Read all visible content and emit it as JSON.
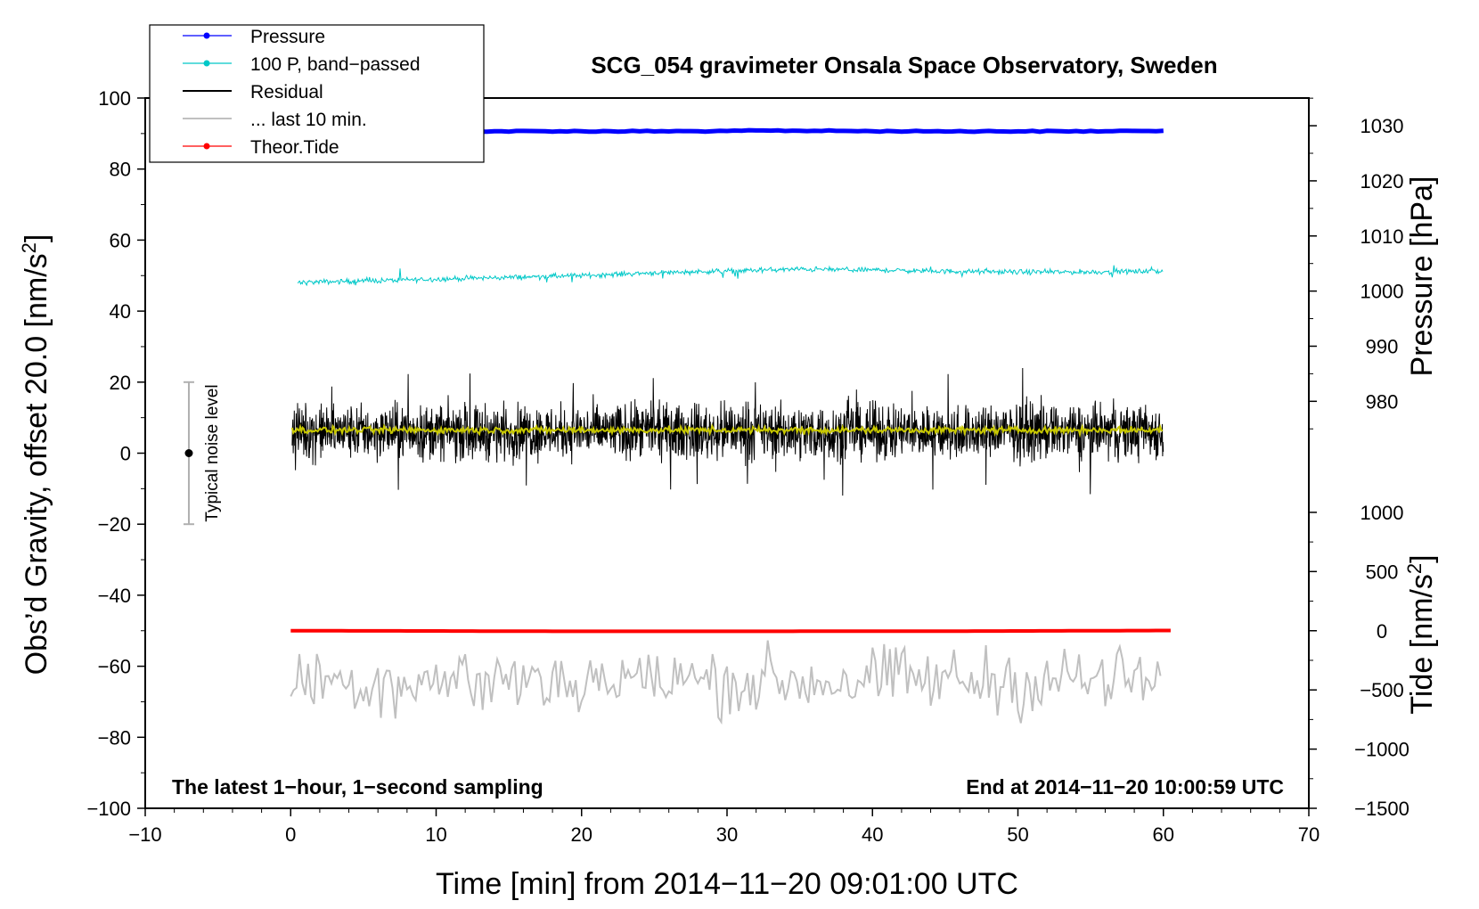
{
  "chart_data": {
    "type": "line",
    "title": "SCG_054 gravimeter Onsala Space Observatory, Sweden",
    "xlabel": "Time [min] from 2014−11−20 09:01:00 UTC",
    "ylabel_left": "Obs’d Gravity, offset 20.0 [nm/s",
    "ylabel_left_sup": "2",
    "ylabel_left_end": "]",
    "ylabel_right_pressure": "Pressure [hPa]",
    "ylabel_right_tide": "Tide [nm/s",
    "ylabel_right_tide_sup": "2",
    "ylabel_right_tide_end": "]",
    "xlim": [
      -10,
      70
    ],
    "ylim": [
      -100,
      100
    ],
    "x_ticks": [
      -10,
      0,
      10,
      20,
      30,
      40,
      50,
      60,
      70
    ],
    "x_tick_labels": [
      "−10",
      "0",
      "10",
      "20",
      "30",
      "40",
      "50",
      "60",
      "70"
    ],
    "y_ticks": [
      -100,
      -80,
      -60,
      -40,
      -20,
      0,
      20,
      40,
      60,
      80,
      100
    ],
    "y_tick_labels": [
      "−100",
      "−80",
      "−60",
      "−40",
      "−20",
      "0",
      "20",
      "40",
      "60",
      "80",
      "100"
    ],
    "pressure_axis": {
      "ticks": [
        980,
        990,
        1000,
        1010,
        1020,
        1030
      ],
      "tick_labels": [
        "980",
        "990",
        "1000",
        "1010",
        "1020",
        "1030"
      ],
      "mapping": {
        "value_a": 980,
        "gravity_a": 14.6,
        "value_b": 1030,
        "gravity_b": 92.2
      }
    },
    "tide_axis": {
      "ticks": [
        -1500,
        -1000,
        -500,
        0,
        500,
        1000
      ],
      "tick_labels": [
        "−1500",
        "−1000",
        "−500",
        "0",
        "500",
        "1000"
      ],
      "mapping": {
        "value_a": -1500,
        "gravity_a": -100,
        "value_b": 0,
        "gravity_b": -50
      }
    },
    "annotations": {
      "left": "The latest 1−hour, 1−second sampling",
      "right": "End at 2014−11−20 10:00:59 UTC",
      "noise_label": "Typical noise level",
      "noise_bar": {
        "x": -7,
        "center": 0,
        "low": -20,
        "high": 20
      }
    },
    "legend": {
      "position": "top-left",
      "entries": [
        {
          "label": "Pressure",
          "color": "#0000ff",
          "marker": true
        },
        {
          "label": "100 P, band−passed",
          "color": "#00c8c8",
          "marker": true
        },
        {
          "label": "Residual",
          "color": "#000000",
          "marker": false
        },
        {
          "label": "... last 10 min.",
          "color": "#c0c0c0",
          "marker": false
        },
        {
          "label": "Theor.Tide",
          "color": "#ff0000",
          "marker": true
        }
      ]
    },
    "series": [
      {
        "name": "Pressure",
        "color": "#0000ff",
        "axis": "pressure",
        "x": [
          0,
          10,
          20,
          30,
          31,
          33,
          36,
          40,
          50,
          57,
          58,
          60
        ],
        "values": [
          1029.0,
          1029.0,
          1029.0,
          1029.0,
          1029.1,
          1029.1,
          1029.1,
          1029.0,
          1029.0,
          1029.0,
          1029.1,
          1029.1
        ]
      },
      {
        "name": "100 P, band−passed",
        "color": "#00c8c8",
        "axis": "gravity",
        "x": [
          0,
          5,
          10,
          15,
          20,
          25,
          30,
          35,
          40,
          45,
          50,
          55,
          60
        ],
        "values": [
          48,
          48.5,
          49,
          49.5,
          50,
          50.8,
          51.3,
          51.8,
          51.6,
          51.2,
          51.0,
          51.0,
          51.3
        ],
        "noise_amplitude": 0.6
      },
      {
        "name": "Residual",
        "color": "#000000",
        "axis": "gravity",
        "x": [
          0,
          60
        ],
        "values": [
          6,
          6
        ],
        "noise_amplitude": 6.5,
        "spike_range": [
          -13,
          25
        ]
      },
      {
        "name": "Residual smoothed",
        "color": "#c8c800",
        "axis": "gravity",
        "x": [
          0,
          60
        ],
        "values": [
          6.5,
          6.5
        ],
        "noise_amplitude": 0.8
      },
      {
        "name": "... last 10 min.",
        "color": "#c0c0c0",
        "axis": "gravity",
        "x": [
          0,
          60
        ],
        "values": [
          -64,
          -64
        ],
        "noise_amplitude": 6,
        "range": [
          -80,
          -47
        ]
      },
      {
        "name": "Theor.Tide",
        "color": "#ff0000",
        "axis": "tide",
        "x": [
          0,
          5,
          10,
          15,
          20,
          30,
          40,
          47,
          50,
          55,
          60.5
        ],
        "values": [
          0,
          -1,
          -2,
          -4,
          -5,
          -5,
          -4,
          -3,
          -2,
          0,
          2
        ]
      }
    ]
  }
}
